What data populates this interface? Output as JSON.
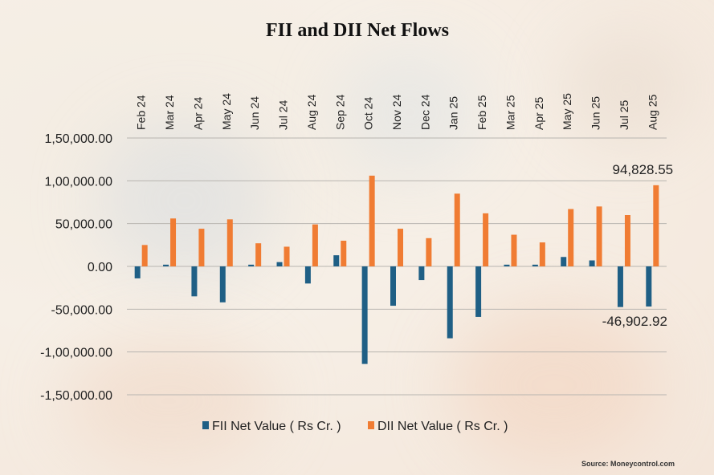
{
  "chart_data": {
    "type": "bar",
    "title": "FII and DII Net Flows",
    "categories": [
      "Feb 24",
      "Mar 24",
      "Apr 24",
      "May 24",
      "Jun 24",
      "Jul 24",
      "Aug 24",
      "Sep 24",
      "Oct 24",
      "Nov 24",
      "Dec 24",
      "Jan 25",
      "Feb 25",
      "Mar 25",
      "Apr 25",
      "May 25",
      "Jun 25",
      "Jul 25",
      "Aug 25"
    ],
    "series": [
      {
        "name": "FII Net Value ( Rs Cr. )",
        "color": "#1f5f85",
        "values": [
          -14000,
          2000,
          -35000,
          -42000,
          2000,
          5000,
          -20000,
          13000,
          -114000,
          -46000,
          -16000,
          -84000,
          -59000,
          2000,
          2000,
          11000,
          7000,
          -47500,
          -46902.92
        ]
      },
      {
        "name": "DII Net Value ( Rs Cr. )",
        "color": "#f07c33",
        "values": [
          25000,
          56000,
          44000,
          55000,
          27000,
          23000,
          49000,
          30000,
          106000,
          44000,
          33000,
          85000,
          62000,
          37000,
          28000,
          67000,
          70000,
          60000,
          94828.55
        ]
      }
    ],
    "y_ticks": [
      "1,50,000.00",
      "1,00,000.00",
      "50,000.00",
      "0.00",
      "-50,000.00",
      "-1,00,000.00",
      "-1,50,000.00"
    ],
    "ylim": [
      -150000,
      150000
    ],
    "x_axis_position": "top",
    "legend_position": "bottom",
    "grid": true,
    "annotations": [
      "94,828.55",
      "-46,902.92"
    ],
    "source": "Source: Moneycontrol.com"
  }
}
